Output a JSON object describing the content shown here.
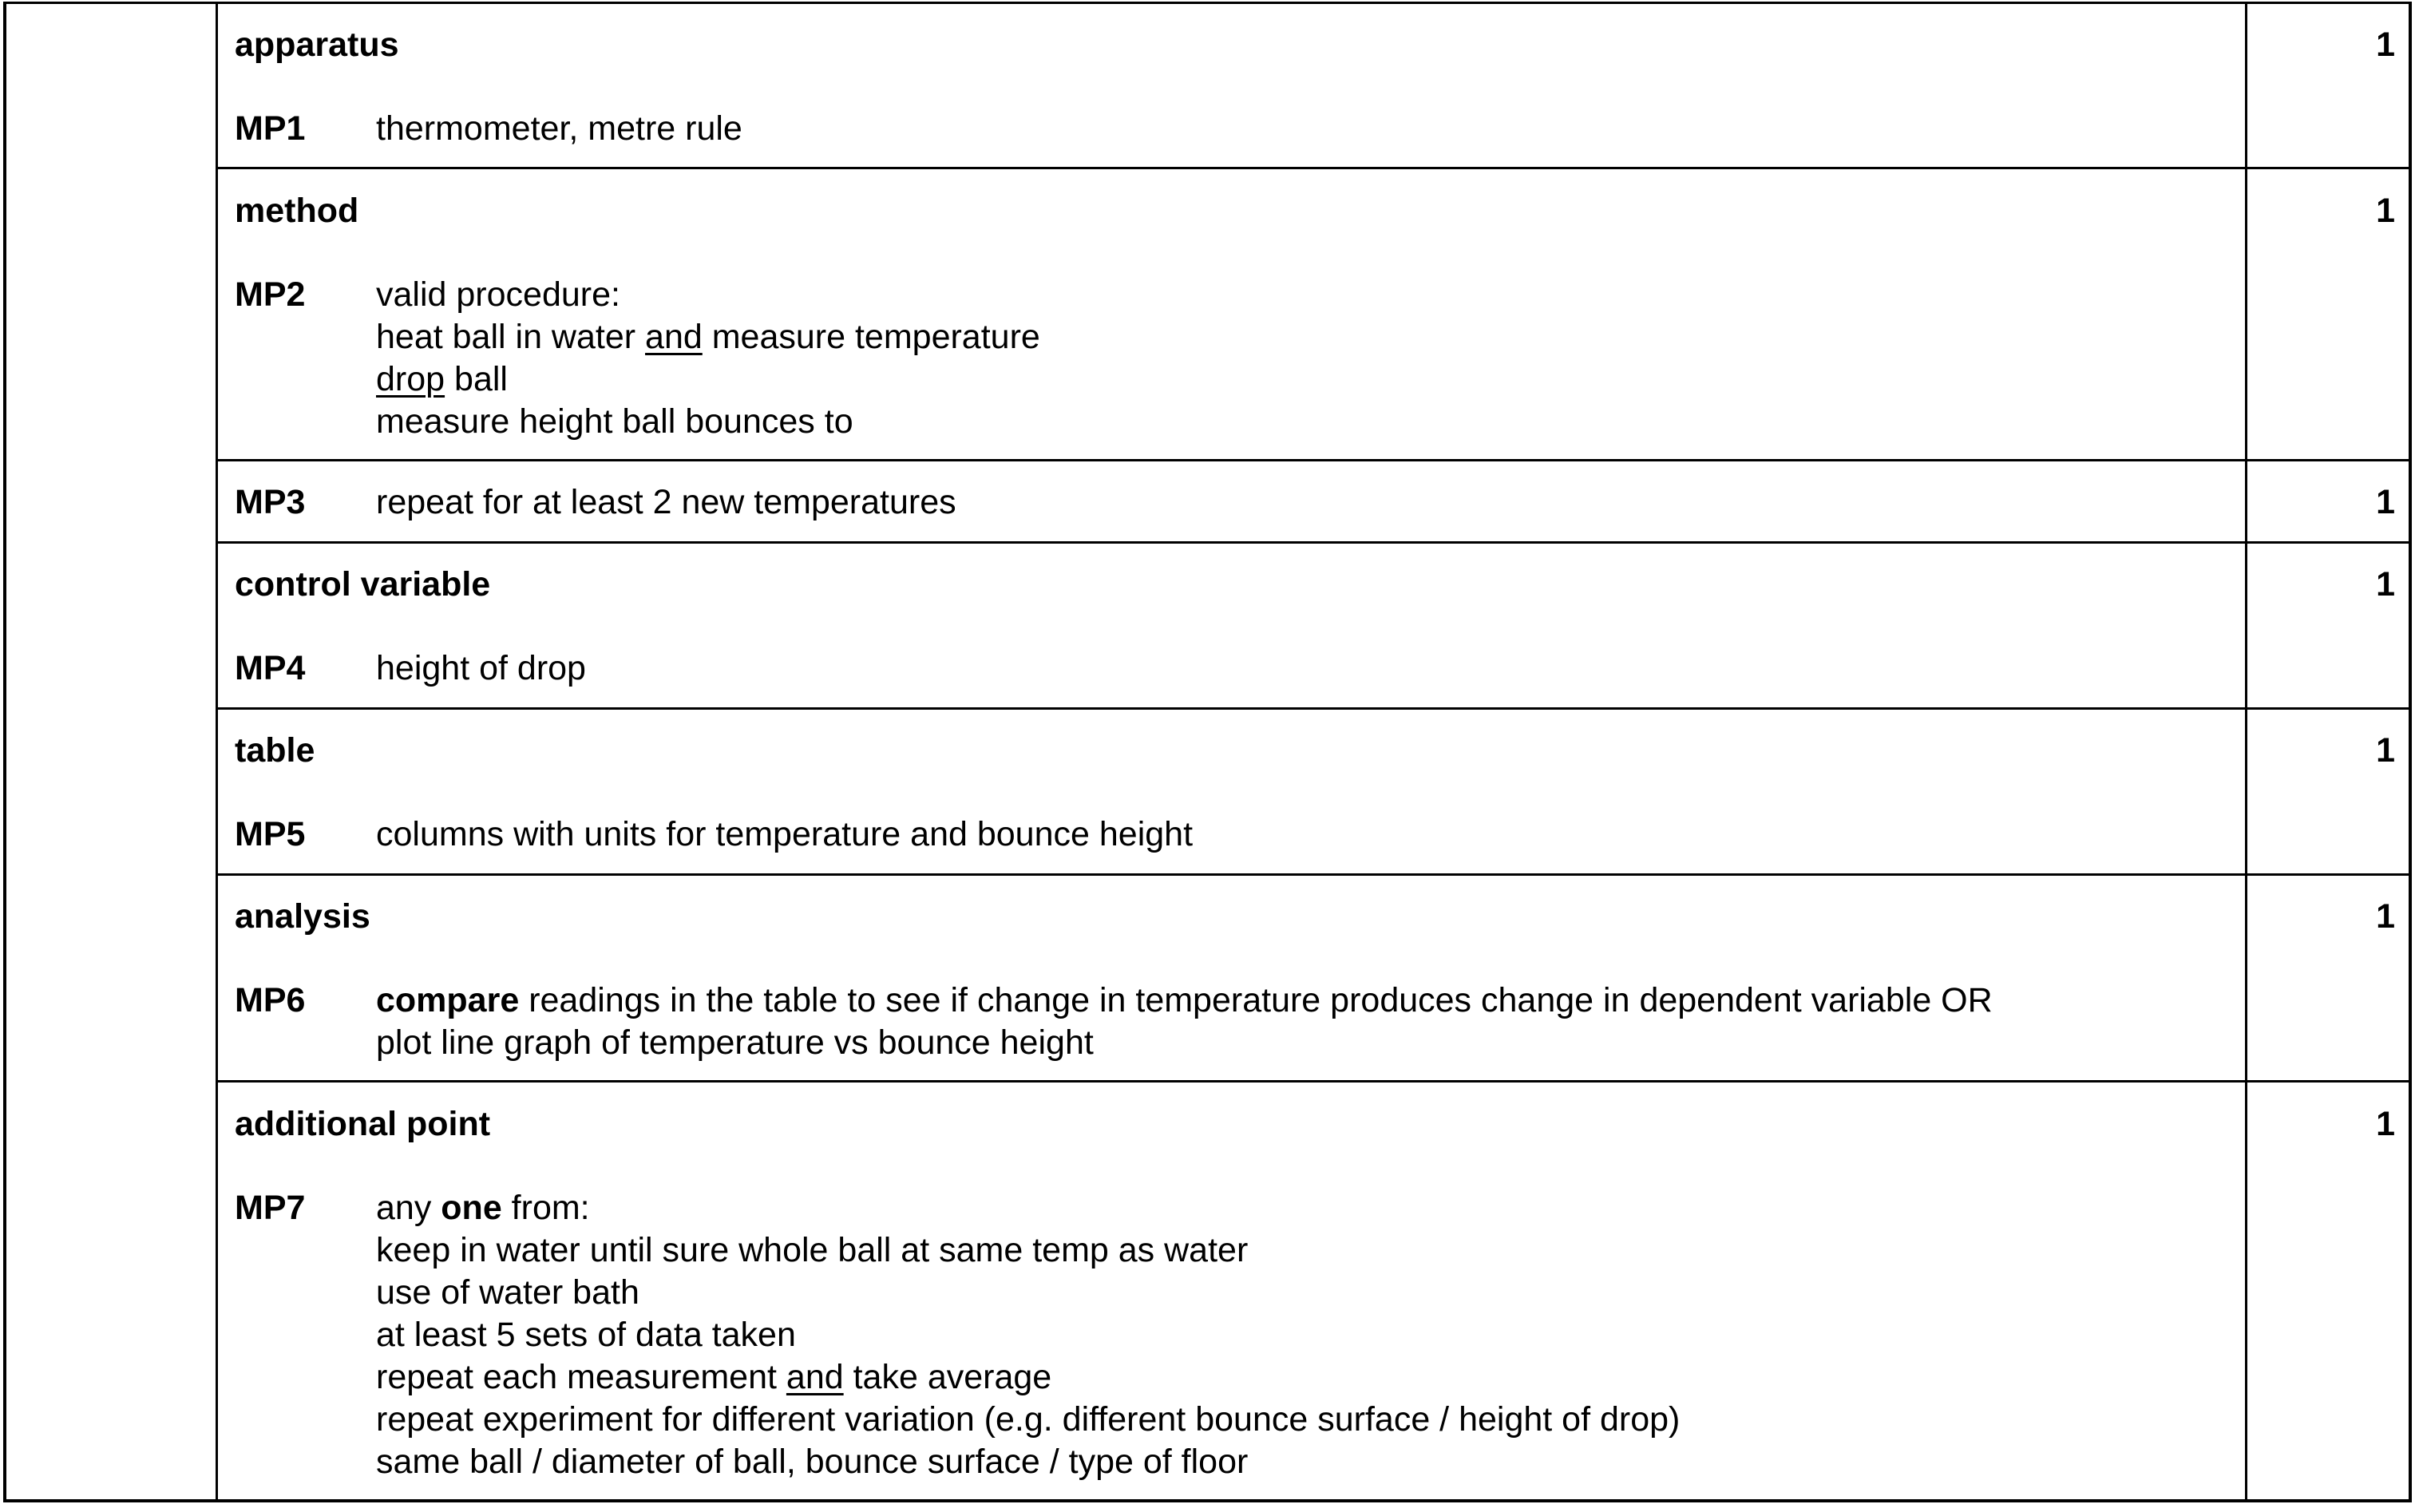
{
  "sections": [
    {
      "heading": "apparatus",
      "mark": "1",
      "mp_label": "MP1",
      "lines": [
        "thermometer, metre rule"
      ]
    },
    {
      "heading": "method",
      "mark": "1",
      "mp_label": "MP2",
      "lines": [
        "valid procedure:",
        "heat ball in water ",
        "and",
        " measure temperature",
        "drop",
        " ball",
        "measure height ball bounces to"
      ]
    },
    {
      "heading": "",
      "mark": "1",
      "mp_label": "MP3",
      "lines": [
        "repeat for at least 2 new temperatures"
      ]
    },
    {
      "heading": "control variable",
      "mark": "1",
      "mp_label": "MP4",
      "lines": [
        "height of drop"
      ]
    },
    {
      "heading": "table",
      "mark": "1",
      "mp_label": "MP5",
      "lines": [
        "columns with units for temperature and bounce height"
      ]
    },
    {
      "heading": "analysis",
      "mark": "1",
      "mp_label": "MP6",
      "lines": [
        "compare",
        " readings in the table to see if change in temperature produces change in dependent variable OR",
        "plot line graph of temperature vs bounce height"
      ]
    },
    {
      "heading": "additional point",
      "mark": "1",
      "mp_label": "MP7",
      "lines": [
        "any ",
        "one",
        " from:",
        "keep in water until sure whole ball at same temp as water",
        "use of water bath",
        "at least 5 sets of data taken",
        "repeat each measurement ",
        "and",
        " take average",
        "repeat experiment for different variation (e.g. different bounce surface / height of drop)",
        "same ball / diameter of ball, bounce surface / type of floor"
      ]
    }
  ]
}
